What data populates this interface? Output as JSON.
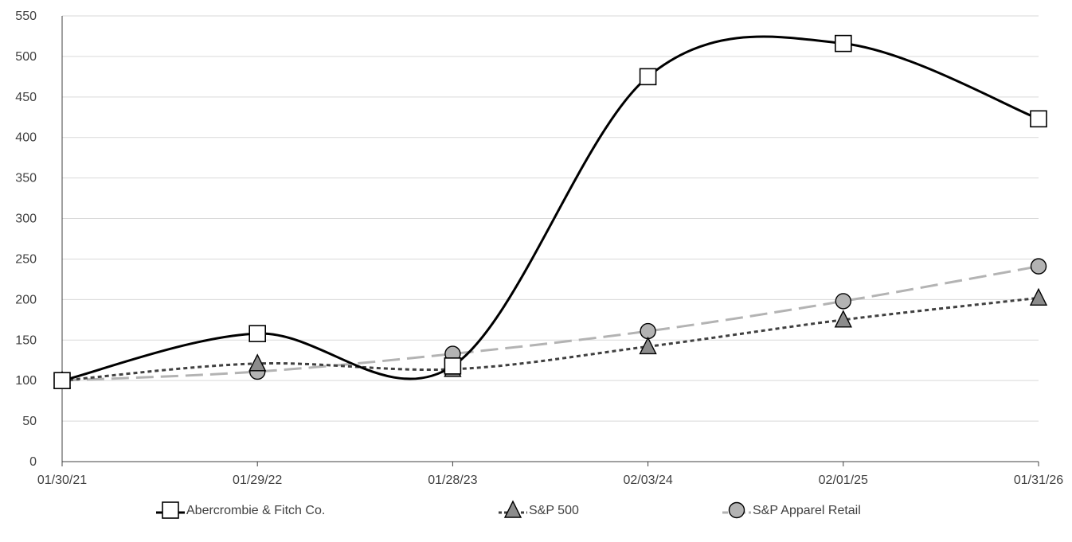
{
  "chart_data": {
    "type": "line",
    "title": "",
    "xlabel": "",
    "ylabel": "",
    "categories": [
      "01/30/21",
      "01/29/22",
      "01/28/23",
      "02/03/24",
      "02/01/25",
      "01/31/26"
    ],
    "ylim": [
      0,
      550
    ],
    "yticks": [
      0,
      50,
      100,
      150,
      200,
      250,
      300,
      350,
      400,
      450,
      500,
      550
    ],
    "grid": "horizontal",
    "legend_position": "bottom",
    "series": [
      {
        "name": "Abercrombie & Fitch Co.",
        "values": [
          100,
          158,
          118,
          475,
          516,
          423
        ],
        "color": "#000000",
        "line_style": "solid",
        "marker": "square"
      },
      {
        "name": "S&P 500",
        "values": [
          100,
          121,
          114,
          142,
          175,
          202
        ],
        "color": "#404040",
        "line_style": "dotted",
        "marker": "triangle"
      },
      {
        "name": "S&P Apparel Retail",
        "values": [
          100,
          111,
          133,
          161,
          198,
          241
        ],
        "color": "#b3b3b3",
        "line_style": "dashed",
        "marker": "circle"
      }
    ]
  }
}
